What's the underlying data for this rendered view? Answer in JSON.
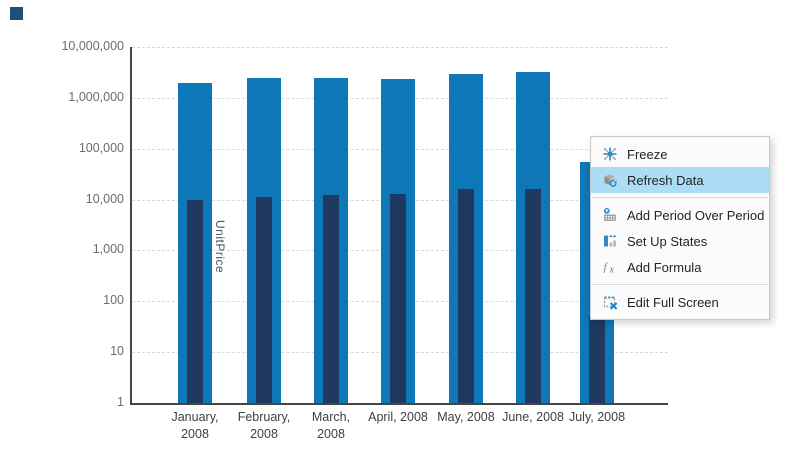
{
  "window": {
    "accent_square_color": "#1F4E79"
  },
  "chart_data": {
    "type": "bar",
    "title": "",
    "ylabel": "UnitPrice",
    "xlabel": "",
    "legend": "none",
    "grid": "horizontal-dashed",
    "y_axis": {
      "scale": "log",
      "ylim": [
        1,
        10000000
      ],
      "tick_labels": [
        "10,000,000",
        "1,000,000",
        "100,000",
        "10,000",
        "1,000",
        "100",
        "10",
        "1"
      ]
    },
    "categories": [
      "January,\n2008",
      "February,\n2008",
      "March,\n2008",
      "April, 2008",
      "May, 2008",
      "June, 2008",
      "July, 2008"
    ],
    "series": [
      {
        "name": "outer-bars",
        "color": "#0D77B7",
        "values": [
          2000000,
          2500000,
          2500000,
          2300000,
          3000000,
          3200000,
          55000
        ]
      },
      {
        "name": "inner-bars",
        "color": "#1F3A60",
        "values": [
          9700,
          11200,
          12100,
          13100,
          16000,
          16000,
          52
        ]
      }
    ]
  },
  "context_menu": {
    "highlight_color": "#ABDDF5",
    "items": [
      {
        "label": "Freeze",
        "icon": "freeze-icon",
        "highlighted": false
      },
      {
        "label": "Refresh Data",
        "icon": "refresh-data-icon",
        "highlighted": true
      },
      {
        "label": "Add Period Over Period",
        "icon": "period-over-period-icon",
        "highlighted": false
      },
      {
        "label": "Set Up States",
        "icon": "set-up-states-icon",
        "highlighted": false
      },
      {
        "label": "Add Formula",
        "icon": "formula-icon",
        "highlighted": false
      },
      {
        "label": "Edit Full Screen",
        "icon": "edit-full-screen-icon",
        "highlighted": false
      }
    ]
  }
}
